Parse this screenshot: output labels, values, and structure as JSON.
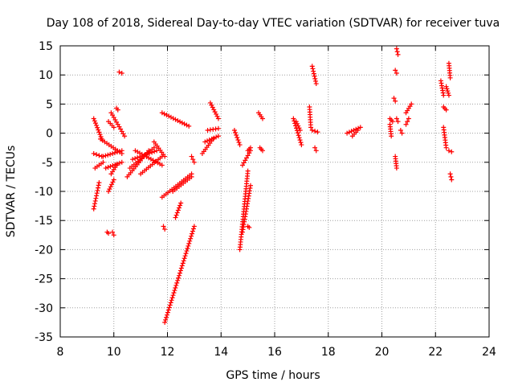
{
  "chart_data": {
    "type": "scatter",
    "title": "Day 108 of 2018, Sidereal Day-to-day VTEC variation (SDTVAR) for receiver tuva",
    "xlabel": "GPS time / hours",
    "ylabel": "SDTVAR / TECUs",
    "xlim": [
      8,
      24
    ],
    "ylim": [
      -35,
      15
    ],
    "x_ticks": [
      8,
      10,
      12,
      14,
      16,
      18,
      20,
      22,
      24
    ],
    "y_ticks": [
      15,
      10,
      5,
      0,
      -5,
      -10,
      -15,
      -20,
      -25,
      -30,
      -35
    ],
    "grid": true,
    "marker": "+",
    "color": "#ff0000",
    "segments": [
      {
        "from": [
          9.25,
          2.5
        ],
        "to": [
          9.55,
          -1.0
        ]
      },
      {
        "from": [
          9.25,
          -3.5
        ],
        "to": [
          9.55,
          -4.0
        ]
      },
      {
        "from": [
          9.3,
          -6.0
        ],
        "to": [
          9.6,
          -5.0
        ]
      },
      {
        "from": [
          9.25,
          -13.0
        ],
        "to": [
          9.45,
          -8.5
        ]
      },
      {
        "from": [
          9.5,
          -1.0
        ],
        "to": [
          10.3,
          -3.5
        ]
      },
      {
        "from": [
          9.6,
          -4.0
        ],
        "to": [
          10.3,
          -3.0
        ]
      },
      {
        "from": [
          9.7,
          -6.0
        ],
        "to": [
          10.3,
          -5.0
        ]
      },
      {
        "from": [
          9.8,
          2.0
        ],
        "to": [
          10.0,
          1.0
        ]
      },
      {
        "from": [
          9.9,
          3.5
        ],
        "to": [
          10.4,
          -0.5
        ]
      },
      {
        "from": [
          9.8,
          -10.0
        ],
        "to": [
          10.0,
          -8.0
        ]
      },
      {
        "from": [
          9.9,
          -7.0
        ],
        "to": [
          10.1,
          -5.5
        ]
      },
      {
        "from": [
          10.1,
          4.3
        ],
        "to": [
          10.15,
          4.0
        ]
      },
      {
        "from": [
          10.2,
          10.5
        ],
        "to": [
          10.3,
          10.3
        ]
      },
      {
        "from": [
          9.75,
          -17.0
        ],
        "to": [
          9.8,
          -17.2
        ]
      },
      {
        "from": [
          9.95,
          -17.0
        ],
        "to": [
          10.0,
          -17.5
        ]
      },
      {
        "from": [
          10.5,
          -7.5
        ],
        "to": [
          11.3,
          -3.0
        ]
      },
      {
        "from": [
          10.6,
          -6.0
        ],
        "to": [
          11.5,
          -2.5
        ]
      },
      {
        "from": [
          10.7,
          -4.5
        ],
        "to": [
          11.6,
          -3.0
        ]
      },
      {
        "from": [
          10.8,
          -3.0
        ],
        "to": [
          11.8,
          -5.5
        ]
      },
      {
        "from": [
          11.0,
          -7.0
        ],
        "to": [
          11.8,
          -4.0
        ]
      },
      {
        "from": [
          11.5,
          -1.5
        ],
        "to": [
          11.9,
          -4.0
        ]
      },
      {
        "from": [
          11.85,
          -16.0
        ],
        "to": [
          11.9,
          -16.5
        ]
      },
      {
        "from": [
          11.8,
          3.5
        ],
        "to": [
          12.8,
          1.2
        ]
      },
      {
        "from": [
          11.8,
          -11.0
        ],
        "to": [
          12.9,
          -7.0
        ]
      },
      {
        "from": [
          12.2,
          -10.0
        ],
        "to": [
          12.9,
          -7.5
        ]
      },
      {
        "from": [
          12.3,
          -14.5
        ],
        "to": [
          12.5,
          -12.0
        ]
      },
      {
        "from": [
          11.9,
          -32.5
        ],
        "to": [
          13.0,
          -16.0
        ]
      },
      {
        "from": [
          12.9,
          -4.0
        ],
        "to": [
          13.0,
          -5.0
        ]
      },
      {
        "from": [
          13.3,
          -3.5
        ],
        "to": [
          13.7,
          -1.0
        ]
      },
      {
        "from": [
          13.4,
          -1.5
        ],
        "to": [
          13.9,
          -0.5
        ]
      },
      {
        "from": [
          13.5,
          0.5
        ],
        "to": [
          13.9,
          0.8
        ]
      },
      {
        "from": [
          13.6,
          5.2
        ],
        "to": [
          13.9,
          2.5
        ]
      },
      {
        "from": [
          14.5,
          0.5
        ],
        "to": [
          14.7,
          -2.0
        ]
      },
      {
        "from": [
          14.7,
          -20.0
        ],
        "to": [
          15.0,
          -6.5
        ]
      },
      {
        "from": [
          14.8,
          -17.0
        ],
        "to": [
          15.1,
          -9.0
        ]
      },
      {
        "from": [
          14.8,
          -5.5
        ],
        "to": [
          15.1,
          -3.0
        ]
      },
      {
        "from": [
          15.0,
          -16.0
        ],
        "to": [
          15.05,
          -16.2
        ]
      },
      {
        "from": [
          15.0,
          -3.0
        ],
        "to": [
          15.1,
          -2.5
        ]
      },
      {
        "from": [
          15.4,
          3.5
        ],
        "to": [
          15.55,
          2.5
        ]
      },
      {
        "from": [
          15.45,
          -2.5
        ],
        "to": [
          15.55,
          -3.0
        ]
      },
      {
        "from": [
          16.7,
          2.5
        ],
        "to": [
          17.0,
          -2.0
        ]
      },
      {
        "from": [
          16.8,
          2.0
        ],
        "to": [
          16.95,
          0.5
        ]
      },
      {
        "from": [
          17.3,
          4.5
        ],
        "to": [
          17.35,
          1.0
        ]
      },
      {
        "from": [
          17.4,
          11.5
        ],
        "to": [
          17.55,
          8.5
        ]
      },
      {
        "from": [
          17.4,
          0.5
        ],
        "to": [
          17.6,
          0.2
        ]
      },
      {
        "from": [
          17.5,
          -2.5
        ],
        "to": [
          17.55,
          -3.0
        ]
      },
      {
        "from": [
          18.7,
          0.0
        ],
        "to": [
          19.2,
          1.0
        ]
      },
      {
        "from": [
          18.9,
          -0.5
        ],
        "to": [
          19.1,
          0.5
        ]
      },
      {
        "from": [
          20.3,
          2.5
        ],
        "to": [
          20.4,
          2.0
        ]
      },
      {
        "from": [
          20.3,
          1.5
        ],
        "to": [
          20.35,
          -0.5
        ]
      },
      {
        "from": [
          20.45,
          6.0
        ],
        "to": [
          20.5,
          5.5
        ]
      },
      {
        "from": [
          20.5,
          -4.0
        ],
        "to": [
          20.55,
          -6.0
        ]
      },
      {
        "from": [
          20.5,
          10.8
        ],
        "to": [
          20.55,
          10.3
        ]
      },
      {
        "from": [
          20.55,
          14.5
        ],
        "to": [
          20.6,
          13.5
        ]
      },
      {
        "from": [
          20.55,
          2.5
        ],
        "to": [
          20.6,
          2.0
        ]
      },
      {
        "from": [
          20.7,
          0.5
        ],
        "to": [
          20.75,
          0.0
        ]
      },
      {
        "from": [
          20.9,
          3.5
        ],
        "to": [
          21.1,
          5.0
        ]
      },
      {
        "from": [
          20.9,
          1.5
        ],
        "to": [
          21.0,
          2.5
        ]
      },
      {
        "from": [
          22.2,
          9.0
        ],
        "to": [
          22.3,
          6.5
        ]
      },
      {
        "from": [
          22.3,
          4.5
        ],
        "to": [
          22.4,
          4.0
        ]
      },
      {
        "from": [
          22.3,
          1.0
        ],
        "to": [
          22.4,
          -2.5
        ]
      },
      {
        "from": [
          22.4,
          8.0
        ],
        "to": [
          22.5,
          6.5
        ]
      },
      {
        "from": [
          22.5,
          12.0
        ],
        "to": [
          22.55,
          9.5
        ]
      },
      {
        "from": [
          22.5,
          -3.0
        ],
        "to": [
          22.6,
          -3.2
        ]
      },
      {
        "from": [
          22.55,
          -7.0
        ],
        "to": [
          22.6,
          -8.0
        ]
      }
    ]
  }
}
